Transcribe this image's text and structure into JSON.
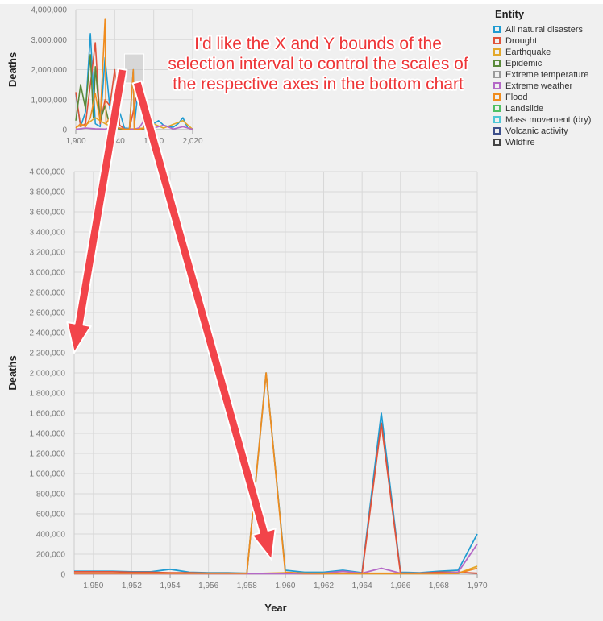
{
  "annotation": "I'd like the X and Y bounds of the selection interval to control the scales of the respective axes in the bottom chart",
  "legend": {
    "title": "Entity",
    "items": [
      {
        "label": "All natural disasters",
        "color": "#1f9bd1"
      },
      {
        "label": "Drought",
        "color": "#e0523a"
      },
      {
        "label": "Earthquake",
        "color": "#e3a82b"
      },
      {
        "label": "Epidemic",
        "color": "#5a8a3a"
      },
      {
        "label": "Extreme temperature",
        "color": "#9a9a9a"
      },
      {
        "label": "Extreme weather",
        "color": "#b468c7"
      },
      {
        "label": "Flood",
        "color": "#f08c1e"
      },
      {
        "label": "Landslide",
        "color": "#4fc064"
      },
      {
        "label": "Mass movement (dry)",
        "color": "#4ec7d6"
      },
      {
        "label": "Volcanic activity",
        "color": "#3d4f8a"
      },
      {
        "label": "Wildfire",
        "color": "#444444"
      }
    ]
  },
  "chart_data": [
    {
      "type": "line",
      "role": "overview",
      "ylabel": "Deaths",
      "xlim": [
        1900,
        2020
      ],
      "ylim": [
        0,
        4000000
      ],
      "x_ticks": [
        "1,900",
        "1,940",
        "1,980",
        "2,020"
      ],
      "y_ticks": [
        "0",
        "1,000,000",
        "2,000,000",
        "3,000,000",
        "4,000,000"
      ],
      "selection": {
        "x": [
          1950,
          1970
        ],
        "y": [
          0,
          4000000
        ]
      },
      "series": [
        {
          "name": "All natural disasters",
          "x": [
            1900,
            1905,
            1910,
            1915,
            1920,
            1925,
            1930,
            1935,
            1940,
            1945,
            1950,
            1955,
            1959,
            1960,
            1965,
            1970,
            1975,
            1980,
            1985,
            1990,
            1995,
            2000,
            2005,
            2010,
            2015,
            2020
          ],
          "y": [
            1200000,
            100000,
            600000,
            3200000,
            200000,
            100000,
            2400000,
            700000,
            200000,
            600000,
            50000,
            40000,
            2000000,
            100000,
            1600000,
            400000,
            500000,
            200000,
            300000,
            150000,
            100000,
            80000,
            200000,
            400000,
            50000,
            30000
          ]
        },
        {
          "name": "Drought",
          "x": [
            1900,
            1905,
            1910,
            1915,
            1920,
            1925,
            1930,
            1935,
            1940,
            1945,
            1950,
            1955,
            1965,
            1970
          ],
          "y": [
            1250000,
            100000,
            200000,
            1500000,
            2900000,
            200000,
            1000000,
            800000,
            2000000,
            150000,
            20000,
            10000,
            1500000,
            20000
          ]
        },
        {
          "name": "Earthquake",
          "x": [
            1900,
            1910,
            1920,
            1930,
            1940,
            1950,
            1960,
            1970,
            1976,
            1990,
            2010,
            2020
          ],
          "y": [
            100000,
            150000,
            400000,
            200000,
            50000,
            20000,
            30000,
            50000,
            250000,
            50000,
            300000,
            10000
          ]
        },
        {
          "name": "Epidemic",
          "x": [
            1900,
            1905,
            1910,
            1915,
            1918,
            1920,
            1925,
            1930,
            1935,
            1940,
            1950,
            1960,
            1970
          ],
          "y": [
            300000,
            1500000,
            700000,
            2500000,
            400000,
            2100000,
            300000,
            800000,
            100000,
            50000,
            5000,
            5000,
            5000
          ]
        },
        {
          "name": "Extreme weather",
          "x": [
            1900,
            1910,
            1920,
            1930,
            1940,
            1950,
            1955,
            1960,
            1965,
            1970,
            1980,
            1990,
            2000,
            2010,
            2020
          ],
          "y": [
            10000,
            50000,
            30000,
            20000,
            100000,
            10000,
            20000,
            10000,
            60000,
            300000,
            50000,
            150000,
            20000,
            100000,
            10000
          ]
        },
        {
          "name": "Flood",
          "x": [
            1900,
            1905,
            1910,
            1915,
            1920,
            1925,
            1930,
            1931,
            1935,
            1940,
            1945,
            1950,
            1955,
            1959,
            1960,
            1965,
            1970
          ],
          "y": [
            50000,
            200000,
            100000,
            400000,
            1200000,
            300000,
            3700000,
            200000,
            400000,
            100000,
            50000,
            10000,
            10000,
            2000000,
            10000,
            5000,
            50000
          ]
        }
      ]
    },
    {
      "type": "line",
      "role": "detail",
      "xlabel": "Year",
      "ylabel": "Deaths",
      "xlim": [
        1949,
        1970
      ],
      "ylim": [
        0,
        4000000
      ],
      "x_ticks": [
        "1,950",
        "1,952",
        "1,954",
        "1,956",
        "1,958",
        "1,960",
        "1,962",
        "1,964",
        "1,966",
        "1,968",
        "1,970"
      ],
      "y_ticks": [
        "0",
        "200,000",
        "400,000",
        "600,000",
        "800,000",
        "1,000,000",
        "1,200,000",
        "1,400,000",
        "1,600,000",
        "1,800,000",
        "2,000,000",
        "2,200,000",
        "2,400,000",
        "2,600,000",
        "2,800,000",
        "3,000,000",
        "3,200,000",
        "3,400,000",
        "3,600,000",
        "3,800,000",
        "4,000,000"
      ],
      "series": [
        {
          "name": "All natural disasters",
          "x": [
            1949,
            1950,
            1951,
            1952,
            1953,
            1954,
            1955,
            1956,
            1957,
            1958,
            1959,
            1960,
            1961,
            1962,
            1963,
            1964,
            1965,
            1966,
            1967,
            1968,
            1969,
            1970
          ],
          "y": [
            30000,
            30000,
            30000,
            25000,
            25000,
            50000,
            20000,
            15000,
            15000,
            10000,
            2000000,
            40000,
            20000,
            20000,
            40000,
            15000,
            1600000,
            20000,
            15000,
            30000,
            40000,
            400000
          ]
        },
        {
          "name": "Drought",
          "x": [
            1949,
            1950,
            1951,
            1952,
            1953,
            1954,
            1955,
            1956,
            1957,
            1958,
            1959,
            1960,
            1961,
            1962,
            1963,
            1964,
            1965,
            1966,
            1967,
            1968,
            1969,
            1970
          ],
          "y": [
            25000,
            25000,
            25000,
            20000,
            20000,
            15000,
            15000,
            10000,
            10000,
            8000,
            8000,
            8000,
            5000,
            5000,
            10000,
            5000,
            1500000,
            10000,
            10000,
            20000,
            20000,
            10000
          ]
        },
        {
          "name": "Earthquake",
          "x": [
            1949,
            1950,
            1952,
            1954,
            1956,
            1958,
            1960,
            1962,
            1964,
            1966,
            1968,
            1969,
            1970
          ],
          "y": [
            5000,
            5000,
            5000,
            5000,
            5000,
            5000,
            15000,
            5000,
            5000,
            5000,
            5000,
            10000,
            80000
          ]
        },
        {
          "name": "Extreme weather",
          "x": [
            1949,
            1950,
            1952,
            1954,
            1956,
            1958,
            1960,
            1962,
            1963,
            1964,
            1965,
            1966,
            1968,
            1969,
            1970
          ],
          "y": [
            5000,
            5000,
            5000,
            5000,
            5000,
            5000,
            5000,
            10000,
            30000,
            10000,
            60000,
            10000,
            10000,
            20000,
            300000
          ]
        },
        {
          "name": "Flood",
          "x": [
            1949,
            1950,
            1951,
            1952,
            1953,
            1954,
            1955,
            1956,
            1957,
            1958,
            1959,
            1960,
            1961,
            1962,
            1963,
            1964,
            1965,
            1966,
            1967,
            1968,
            1969,
            1970
          ],
          "y": [
            10000,
            10000,
            10000,
            10000,
            10000,
            10000,
            10000,
            10000,
            10000,
            10000,
            2000000,
            20000,
            10000,
            10000,
            10000,
            10000,
            10000,
            10000,
            10000,
            10000,
            10000,
            60000
          ]
        }
      ]
    }
  ]
}
